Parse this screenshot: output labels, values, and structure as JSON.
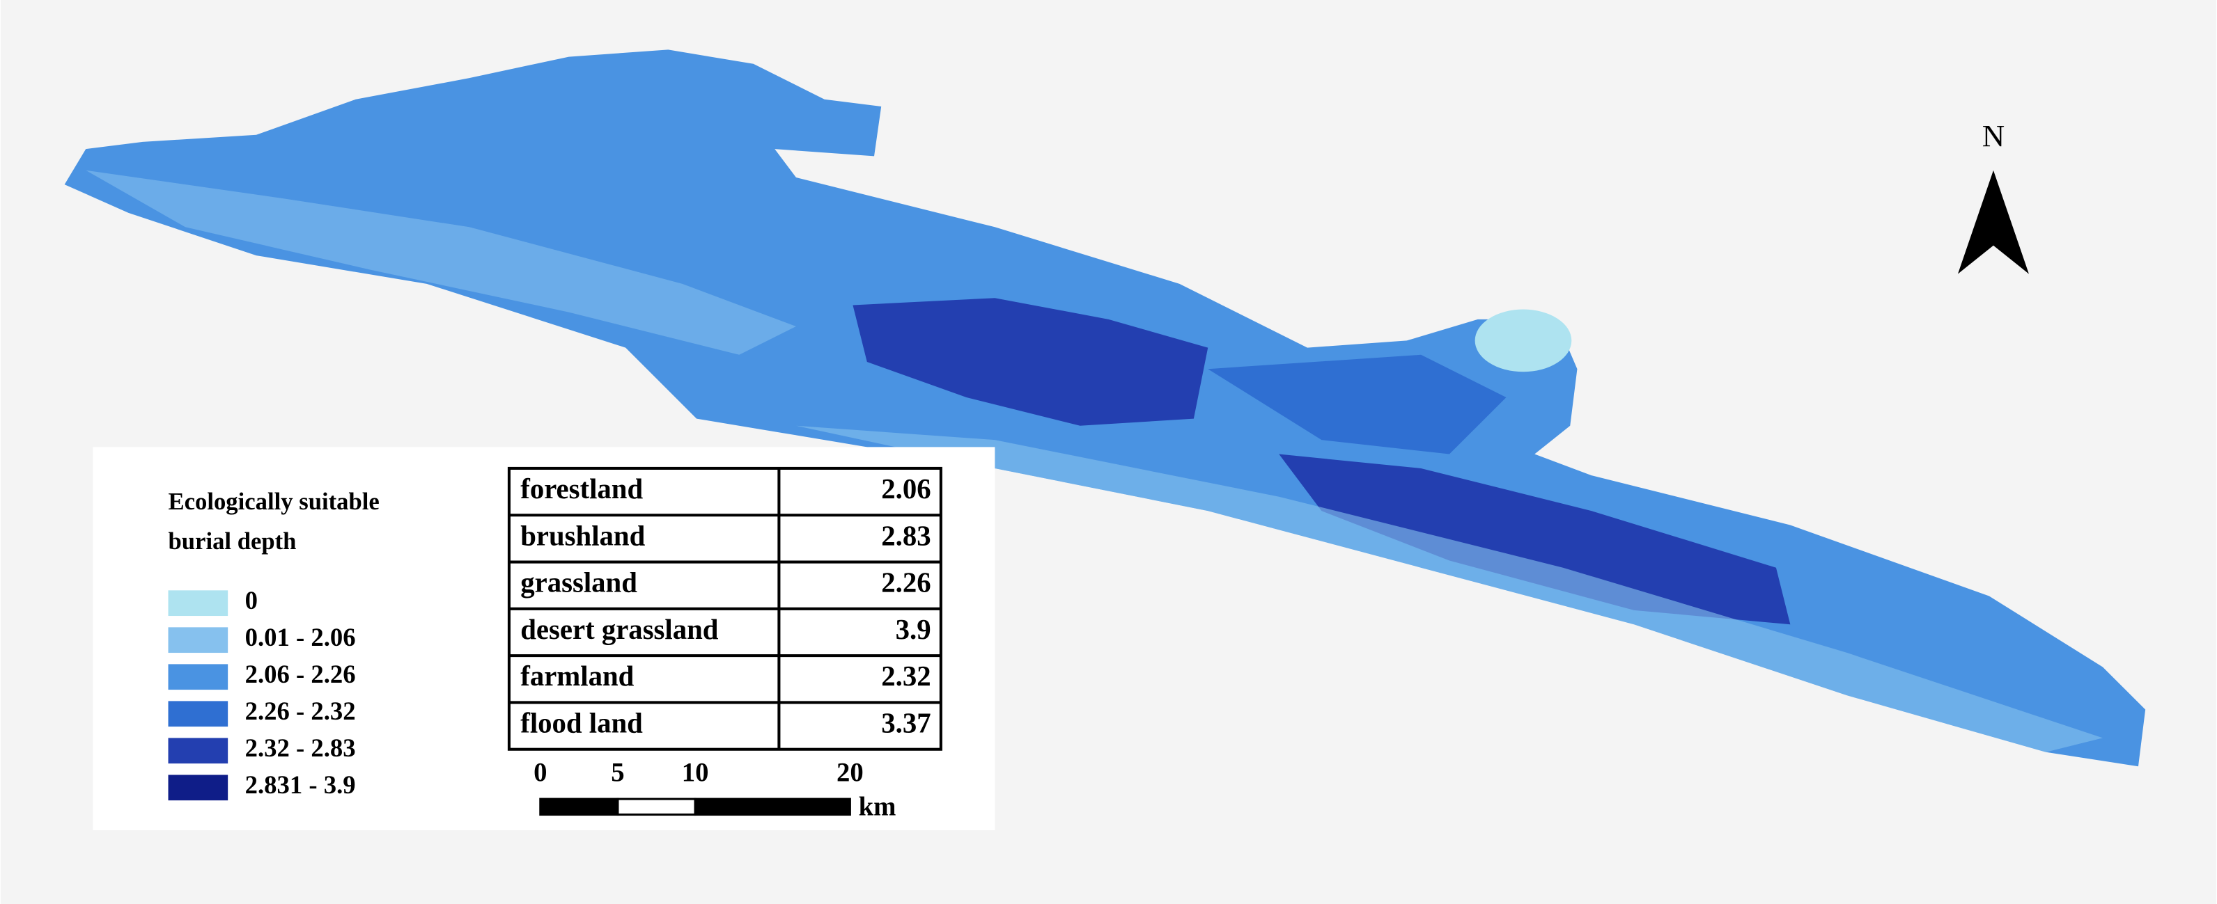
{
  "north_label": "N",
  "legend": {
    "title_lines": [
      "Ecologically suitable",
      "burial depth"
    ],
    "items": [
      {
        "label": "0",
        "color": "#aee3f0"
      },
      {
        "label": "0.01 - 2.06",
        "color": "#86c1ee"
      },
      {
        "label": "2.06 - 2.26",
        "color": "#4a93e2"
      },
      {
        "label": "2.26 - 2.32",
        "color": "#2f6fd2"
      },
      {
        "label": "2.32 - 2.83",
        "color": "#233fb0"
      },
      {
        "label": "2.831 - 3.9",
        "color": "#0f1d88"
      }
    ]
  },
  "table": {
    "rows": [
      [
        "forestland",
        2.06
      ],
      [
        "brushland",
        2.83
      ],
      [
        "grassland",
        2.26
      ],
      [
        "desert grassland",
        3.9
      ],
      [
        "farmland",
        2.32
      ],
      [
        "flood land",
        3.37
      ]
    ]
  },
  "scale_bar": {
    "ticks": [
      0,
      5,
      10,
      20
    ],
    "unit": "km"
  }
}
